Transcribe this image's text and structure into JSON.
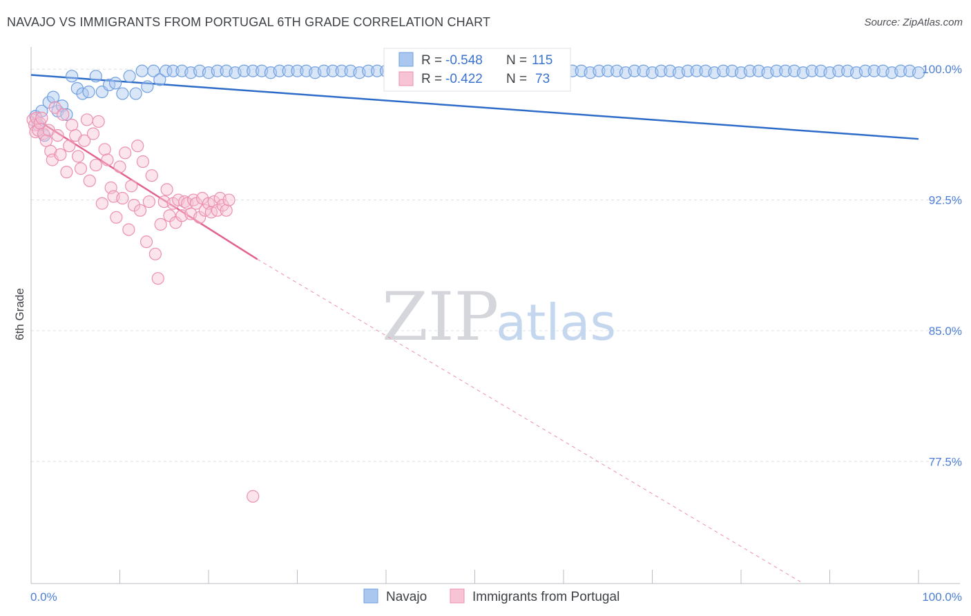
{
  "title": "NAVAJO VS IMMIGRANTS FROM PORTUGAL 6TH GRADE CORRELATION CHART",
  "source": "Source: ZipAtlas.com",
  "watermark": {
    "zip": "ZIP",
    "atlas": "atlas"
  },
  "colors": {
    "navajo": "#6f9fe0",
    "navajo_fill": "#aac7ef",
    "navajo_line": "#2d6bc9",
    "portugal": "#ec8fad",
    "portugal_fill": "#f6c4d4",
    "portugal_line": "#e26190",
    "grid": "#dcdfe4",
    "tick": "#4b7ed4"
  },
  "legend": {
    "rows": [
      {
        "r_label": "R = ",
        "r_value": "-0.548",
        "n_label": "N = ",
        "n_value": "115"
      },
      {
        "r_label": "R = ",
        "r_value": "-0.422",
        "n_label": "N = ",
        "n_value": "73"
      }
    ]
  },
  "chart_data": {
    "type": "scatter",
    "title": "NAVAJO VS IMMIGRANTS FROM PORTUGAL 6TH GRADE CORRELATION CHART",
    "xlabel": "",
    "ylabel": "6th Grade",
    "xlim": [
      0,
      100
    ],
    "ylim": [
      70.5,
      100.8
    ],
    "x_tick_labels": [
      "0.0%",
      "100.0%"
    ],
    "y_ticks": [
      100.0,
      92.5,
      85.0,
      77.5
    ],
    "y_tick_labels": [
      "100.0%",
      "92.5%",
      "85.0%",
      "77.5%"
    ],
    "grid": true,
    "legend_placement": "bottom-center",
    "series": [
      {
        "name": "Navajo",
        "R": -0.548,
        "N": 115,
        "trend": {
          "x0": 0,
          "y0": 99.67,
          "x1": 100,
          "y1": 96.0
        },
        "points": [
          [
            0.5,
            97.3
          ],
          [
            0.8,
            96.8
          ],
          [
            1.2,
            97.6
          ],
          [
            1.5,
            96.2
          ],
          [
            2.0,
            98.1
          ],
          [
            2.5,
            98.4
          ],
          [
            3.0,
            97.6
          ],
          [
            3.5,
            97.9
          ],
          [
            4.0,
            97.4
          ],
          [
            4.6,
            99.6
          ],
          [
            5.2,
            98.9
          ],
          [
            5.8,
            98.6
          ],
          [
            6.5,
            98.7
          ],
          [
            7.3,
            99.6
          ],
          [
            8.0,
            98.7
          ],
          [
            8.8,
            99.1
          ],
          [
            9.5,
            99.2
          ],
          [
            10.3,
            98.6
          ],
          [
            11.1,
            99.6
          ],
          [
            11.8,
            98.6
          ],
          [
            12.5,
            99.9
          ],
          [
            13.1,
            99.0
          ],
          [
            13.8,
            99.9
          ],
          [
            14.5,
            99.4
          ],
          [
            15.2,
            99.9
          ],
          [
            16.0,
            99.9
          ],
          [
            17.0,
            99.9
          ],
          [
            18.0,
            99.8
          ],
          [
            19.0,
            99.9
          ],
          [
            20.0,
            99.8
          ],
          [
            21.0,
            99.9
          ],
          [
            22.0,
            99.9
          ],
          [
            23.0,
            99.8
          ],
          [
            24.0,
            99.9
          ],
          [
            25.0,
            99.9
          ],
          [
            26.0,
            99.9
          ],
          [
            27.0,
            99.8
          ],
          [
            28.0,
            99.9
          ],
          [
            29.0,
            99.9
          ],
          [
            30.0,
            99.9
          ],
          [
            31.0,
            99.9
          ],
          [
            32.0,
            99.8
          ],
          [
            33.0,
            99.9
          ],
          [
            34.0,
            99.9
          ],
          [
            35.0,
            99.9
          ],
          [
            36.0,
            99.9
          ],
          [
            37.0,
            99.8
          ],
          [
            38.0,
            99.9
          ],
          [
            39.0,
            99.9
          ],
          [
            40.0,
            99.9
          ],
          [
            41.0,
            99.9
          ],
          [
            42.0,
            99.8
          ],
          [
            43.0,
            99.9
          ],
          [
            44.0,
            99.9
          ],
          [
            45.0,
            99.9
          ],
          [
            46.0,
            99.9
          ],
          [
            47.0,
            99.9
          ],
          [
            48.0,
            99.8
          ],
          [
            49.0,
            99.9
          ],
          [
            50.0,
            99.9
          ],
          [
            51.0,
            99.9
          ],
          [
            52.0,
            99.8
          ],
          [
            53.0,
            99.9
          ],
          [
            54.0,
            99.9
          ],
          [
            55.0,
            99.9
          ],
          [
            56.0,
            99.9
          ],
          [
            57.0,
            99.8
          ],
          [
            58.0,
            99.9
          ],
          [
            59.0,
            99.9
          ],
          [
            60.0,
            99.8
          ],
          [
            61.0,
            99.9
          ],
          [
            62.0,
            99.9
          ],
          [
            63.0,
            99.8
          ],
          [
            64.0,
            99.9
          ],
          [
            65.0,
            99.9
          ],
          [
            66.0,
            99.9
          ],
          [
            67.0,
            99.8
          ],
          [
            68.0,
            99.9
          ],
          [
            69.0,
            99.9
          ],
          [
            70.0,
            99.8
          ],
          [
            71.0,
            99.9
          ],
          [
            72.0,
            99.9
          ],
          [
            73.0,
            99.8
          ],
          [
            74.0,
            99.9
          ],
          [
            75.0,
            99.9
          ],
          [
            76.0,
            99.9
          ],
          [
            77.0,
            99.8
          ],
          [
            78.0,
            99.9
          ],
          [
            79.0,
            99.9
          ],
          [
            80.0,
            99.8
          ],
          [
            81.0,
            99.9
          ],
          [
            82.0,
            99.9
          ],
          [
            83.0,
            99.8
          ],
          [
            84.0,
            99.9
          ],
          [
            85.0,
            99.9
          ],
          [
            86.0,
            99.9
          ],
          [
            87.0,
            99.8
          ],
          [
            88.0,
            99.9
          ],
          [
            89.0,
            99.9
          ],
          [
            90.0,
            99.8
          ],
          [
            91.0,
            99.9
          ],
          [
            92.0,
            99.9
          ],
          [
            93.0,
            99.8
          ],
          [
            94.0,
            99.9
          ],
          [
            95.0,
            99.9
          ],
          [
            96.0,
            99.9
          ],
          [
            97.0,
            99.8
          ],
          [
            98.0,
            99.9
          ],
          [
            99.0,
            99.9
          ],
          [
            100.0,
            99.8
          ],
          [
            50.0,
            99.9
          ],
          [
            51.0,
            99.9
          ],
          [
            52.0,
            99.8
          ],
          [
            53.0,
            99.9
          ]
        ]
      },
      {
        "name": "Immigrants from Portugal",
        "R": -0.422,
        "N": 73,
        "trend": {
          "x0": 0,
          "y0": 97.3,
          "x1": 25.5,
          "y1": 89.1,
          "dash_to_x": 86.7,
          "dash_to_y": 70.6
        },
        "points": [
          [
            0.2,
            97.1
          ],
          [
            0.4,
            96.8
          ],
          [
            0.5,
            96.4
          ],
          [
            0.6,
            97.2
          ],
          [
            0.8,
            96.5
          ],
          [
            1.0,
            96.9
          ],
          [
            1.2,
            97.2
          ],
          [
            1.4,
            96.3
          ],
          [
            1.7,
            95.9
          ],
          [
            2.0,
            96.5
          ],
          [
            2.2,
            95.3
          ],
          [
            2.4,
            94.8
          ],
          [
            2.7,
            97.8
          ],
          [
            3.0,
            96.2
          ],
          [
            3.3,
            95.1
          ],
          [
            3.6,
            97.4
          ],
          [
            4.0,
            94.1
          ],
          [
            4.3,
            95.6
          ],
          [
            4.6,
            96.8
          ],
          [
            5.0,
            96.2
          ],
          [
            5.3,
            95.0
          ],
          [
            5.6,
            94.3
          ],
          [
            6.0,
            95.9
          ],
          [
            6.3,
            97.1
          ],
          [
            6.6,
            93.6
          ],
          [
            7.0,
            96.3
          ],
          [
            7.3,
            94.5
          ],
          [
            7.6,
            97.0
          ],
          [
            8.0,
            92.3
          ],
          [
            8.3,
            95.4
          ],
          [
            8.6,
            94.8
          ],
          [
            9.0,
            93.2
          ],
          [
            9.3,
            92.7
          ],
          [
            9.6,
            91.5
          ],
          [
            10.0,
            94.4
          ],
          [
            10.3,
            92.6
          ],
          [
            10.6,
            95.2
          ],
          [
            11.0,
            90.8
          ],
          [
            11.3,
            93.3
          ],
          [
            11.6,
            92.2
          ],
          [
            12.0,
            95.6
          ],
          [
            12.3,
            91.9
          ],
          [
            12.6,
            94.7
          ],
          [
            13.0,
            90.1
          ],
          [
            13.3,
            92.4
          ],
          [
            13.6,
            93.9
          ],
          [
            14.0,
            89.4
          ],
          [
            14.3,
            88.0
          ],
          [
            14.6,
            91.1
          ],
          [
            15.0,
            92.4
          ],
          [
            15.3,
            93.1
          ],
          [
            15.6,
            91.6
          ],
          [
            16.0,
            92.3
          ],
          [
            16.3,
            91.2
          ],
          [
            16.6,
            92.5
          ],
          [
            17.0,
            91.6
          ],
          [
            17.3,
            92.4
          ],
          [
            17.6,
            92.3
          ],
          [
            18.0,
            91.7
          ],
          [
            18.3,
            92.5
          ],
          [
            18.6,
            92.3
          ],
          [
            19.0,
            91.5
          ],
          [
            19.3,
            92.6
          ],
          [
            19.6,
            91.9
          ],
          [
            20.0,
            92.3
          ],
          [
            20.3,
            91.8
          ],
          [
            20.6,
            92.4
          ],
          [
            21.0,
            91.9
          ],
          [
            21.3,
            92.6
          ],
          [
            21.6,
            92.2
          ],
          [
            22.0,
            91.9
          ],
          [
            22.3,
            92.5
          ],
          [
            25.0,
            75.5
          ]
        ]
      }
    ]
  },
  "bottom_legend": {
    "items": [
      {
        "label": "Navajo",
        "key": "navajo"
      },
      {
        "label": "Immigrants from Portugal",
        "key": "portugal"
      }
    ]
  }
}
